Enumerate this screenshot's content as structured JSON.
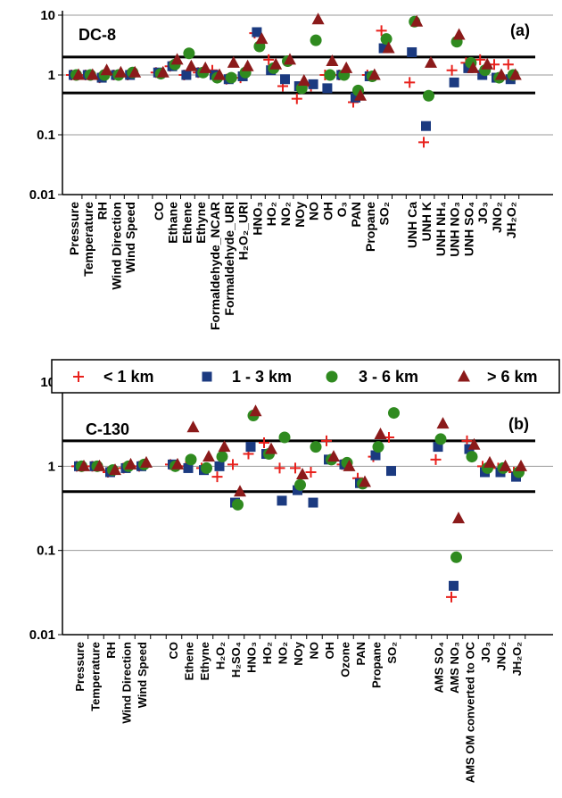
{
  "chart_data": [
    {
      "type": "scatter",
      "title": "DC-8",
      "subtitle": "(a)",
      "yscale": "log",
      "ylim": [
        0.01,
        10
      ],
      "yticks": [
        0.01,
        0.1,
        1,
        10
      ],
      "grid": true,
      "hlines": [
        0.5,
        2
      ],
      "categories": [
        "Pressure",
        "Temperature",
        "RH",
        "Wind Direction",
        "Wind Speed",
        null,
        "CO",
        "Ethane",
        "Ethene",
        "Ethyne",
        "Formaldehyde_NCAR",
        "Formaldehyde_URI",
        "H₂O₂_URI",
        "HNO₃",
        "HO₂",
        "NO₂",
        "NOy",
        "NO",
        "OH",
        "O₃",
        "PAN",
        "Propane",
        "SO₂",
        null,
        "UNH Ca",
        "UNH K",
        "UNH NH₄",
        "UNH NO₃",
        "UNH SO₄",
        "JO₃",
        "JNO₂",
        "JH₂O₂"
      ],
      "series": [
        {
          "name": "< 1 km",
          "color": "#e8211c",
          "marker": "plus",
          "values": [
            1,
            1,
            0.9,
            1,
            1,
            null,
            1.1,
            1.4,
            1,
            1.1,
            1.2,
            0.85,
            0.9,
            5,
            1.8,
            0.65,
            0.4,
            0.65,
            1,
            1,
            0.35,
            1,
            5.5,
            null,
            0.75,
            0.075,
            null,
            1.2,
            1.6,
            1.8,
            1.5,
            1.5
          ]
        },
        {
          "name": "1 - 3 km",
          "color": "#1b3a80",
          "marker": "square",
          "values": [
            1,
            1,
            0.9,
            1,
            1,
            null,
            1.1,
            1.4,
            1,
            1.1,
            1,
            0.85,
            0.95,
            5.2,
            1.2,
            0.85,
            0.65,
            0.7,
            0.6,
            1,
            0.42,
            0.95,
            2.8,
            null,
            2.4,
            0.14,
            null,
            0.75,
            1.3,
            1,
            0.9,
            0.85
          ]
        },
        {
          "name": "3 - 6 km",
          "color": "#2f8a1f",
          "marker": "circle",
          "values": [
            1,
            1,
            1,
            1,
            1.1,
            null,
            1.05,
            1.5,
            2.3,
            1.1,
            0.9,
            0.9,
            1.1,
            3,
            1.3,
            1.7,
            0.6,
            3.8,
            1,
            1,
            0.55,
            0.95,
            4,
            null,
            7.8,
            0.45,
            null,
            3.6,
            1.6,
            1.2,
            0.9,
            1
          ]
        },
        {
          "name": "> 6 km",
          "color": "#8b1a1a",
          "marker": "triangle",
          "values": [
            1,
            1,
            1.2,
            1.1,
            1.1,
            null,
            1.1,
            1.8,
            1.4,
            1.3,
            1,
            1.6,
            1.4,
            4,
            1.5,
            1.8,
            0.8,
            8.5,
            1.7,
            1.3,
            0.45,
            1,
            2.8,
            null,
            7.8,
            1.6,
            null,
            4.7,
            1.3,
            1.5,
            1,
            1
          ]
        }
      ]
    },
    {
      "type": "scatter",
      "title": "C-130",
      "subtitle": "(b)",
      "yscale": "log",
      "ylim": [
        0.01,
        10
      ],
      "yticks": [
        0.01,
        0.1,
        1,
        10
      ],
      "grid": true,
      "hlines": [
        0.5,
        2
      ],
      "categories": [
        "Pressure",
        "Temperature",
        "RH",
        "Wind Direction",
        "Wind Speed",
        null,
        "CO",
        "Ethene",
        "Ethyne",
        "H₂O₂",
        "H₂SO₄",
        "HNO₃",
        "HO₂",
        "NO₂",
        "NOy",
        "NO",
        "OH",
        "Ozone",
        "PAN",
        "Propane",
        "SO₂",
        null,
        null,
        "AMS SO₄",
        "AMS NO₃",
        "AMS OM converted to OC",
        "JO₃",
        "JNO₂",
        "JH₂O₂"
      ],
      "series": [
        {
          "name": "< 1 km",
          "color": "#e8211c",
          "marker": "plus",
          "values": [
            1,
            1,
            0.85,
            0.95,
            1,
            null,
            1.05,
            1,
            0.95,
            0.75,
            1.05,
            1.4,
            1.9,
            0.95,
            0.95,
            0.85,
            2,
            1.05,
            0.72,
            1.3,
            2.2,
            null,
            null,
            1.2,
            0.028,
            2,
            1,
            0.95,
            0.85
          ]
        },
        {
          "name": "1 - 3 km",
          "color": "#1b3a80",
          "marker": "square",
          "values": [
            1,
            1,
            0.85,
            0.95,
            1,
            null,
            1.05,
            0.95,
            0.9,
            1,
            0.37,
            1.7,
            1.4,
            0.39,
            0.52,
            0.37,
            1.2,
            1.05,
            0.63,
            1.35,
            0.88,
            null,
            null,
            1.7,
            0.038,
            1.6,
            0.85,
            0.85,
            0.75
          ]
        },
        {
          "name": "3 - 6 km",
          "color": "#2f8a1f",
          "marker": "circle",
          "values": [
            1,
            1,
            0.9,
            1,
            1.05,
            null,
            1,
            1.2,
            0.95,
            1.3,
            0.35,
            4,
            1.4,
            2.2,
            0.6,
            1.7,
            1.2,
            1.1,
            0.62,
            1.7,
            4.3,
            null,
            null,
            2.1,
            0.083,
            1.3,
            0.95,
            0.95,
            0.85
          ]
        },
        {
          "name": "> 6 km",
          "color": "#8b1a1a",
          "marker": "triangle",
          "values": [
            1,
            1,
            0.9,
            1.05,
            1.1,
            null,
            1.05,
            2.9,
            1.3,
            1.7,
            0.5,
            4.5,
            1.6,
            null,
            0.8,
            null,
            1.3,
            1,
            0.65,
            2.4,
            null,
            null,
            null,
            3.2,
            0.24,
            1.8,
            1.1,
            1,
            1
          ]
        }
      ]
    }
  ]
}
